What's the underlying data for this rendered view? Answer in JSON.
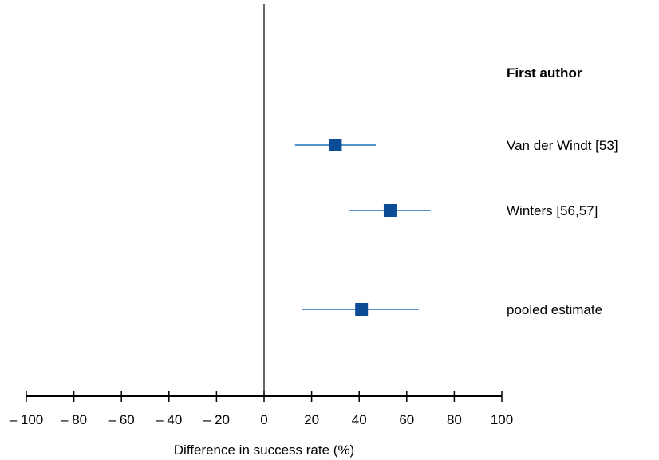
{
  "chart_data": {
    "type": "forest",
    "title": "",
    "xlabel": "Difference in success rate (%)",
    "xlim": [
      -100,
      100
    ],
    "xticks": [
      -100,
      -80,
      -60,
      -40,
      -20,
      0,
      20,
      40,
      60,
      80,
      100
    ],
    "xtick_labels": [
      "– 100",
      "– 80",
      "– 60",
      "– 40",
      "– 20",
      "0",
      "20",
      "40",
      "60",
      "80",
      "100"
    ],
    "reference_line": 0,
    "column_header": "First author",
    "studies": [
      {
        "label": "Van der Windt [53]",
        "estimate": 30,
        "ci_low": 13,
        "ci_high": 47
      },
      {
        "label": "Winters [56,57]",
        "estimate": 53,
        "ci_low": 36,
        "ci_high": 70
      },
      {
        "label": "pooled estimate",
        "estimate": 41,
        "ci_low": 16,
        "ci_high": 65
      }
    ],
    "colors": {
      "marker": "#0a4d96",
      "ci_line": "#1f6fb5",
      "axis": "#000000"
    }
  }
}
